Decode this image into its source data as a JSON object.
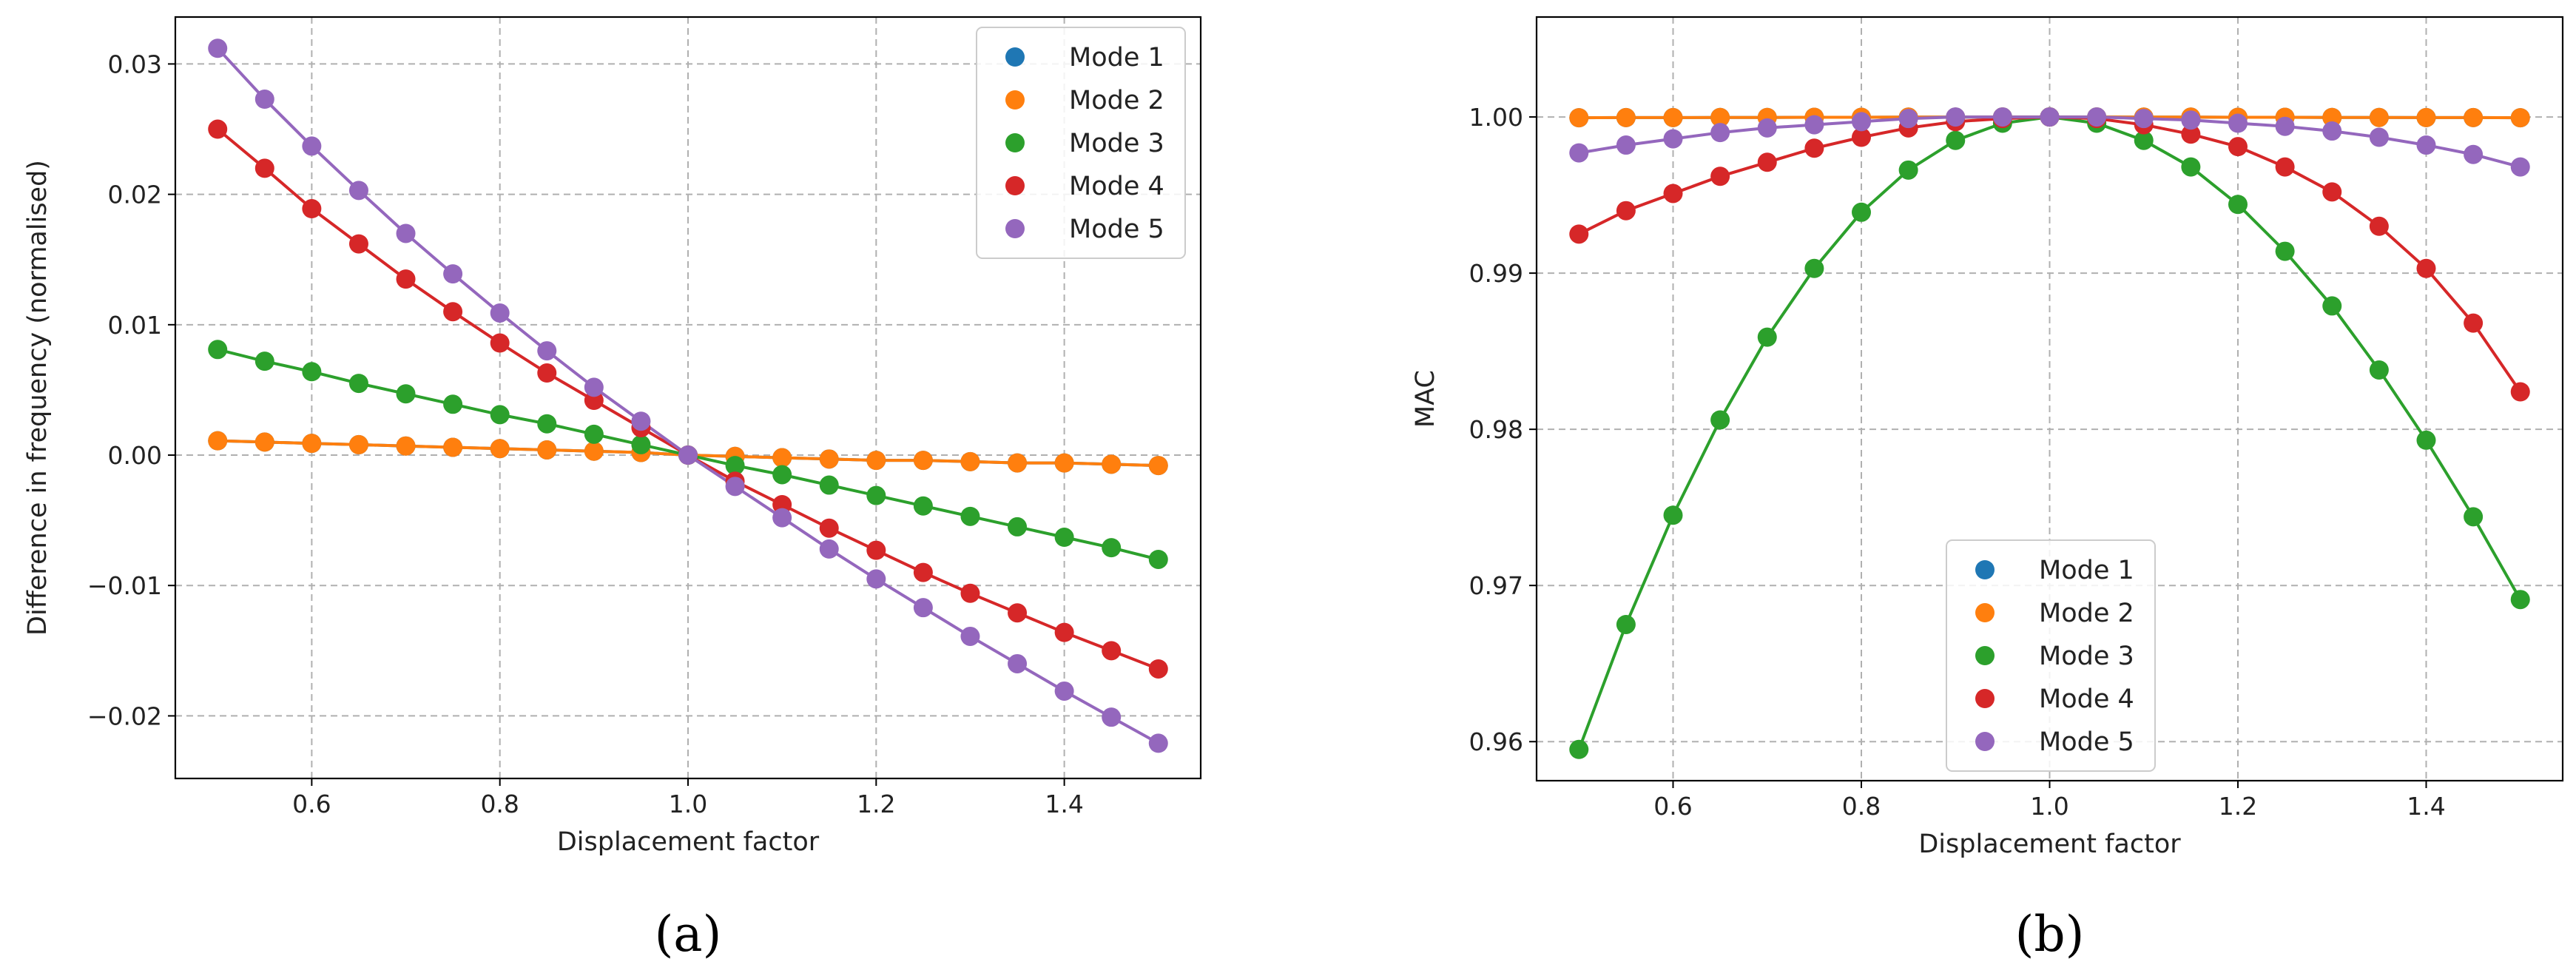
{
  "chart_data": [
    {
      "type": "line",
      "title": "",
      "panel_label": "(a)",
      "xlabel": "Displacement factor",
      "ylabel": "Difference in frequency (normalised)",
      "xlim": [
        0.455,
        1.545
      ],
      "ylim": [
        -0.0248,
        0.0336
      ],
      "xticks": [
        0.6,
        0.8,
        1.0,
        1.2,
        1.4
      ],
      "xtick_labels": [
        "0.6",
        "0.8",
        "1.0",
        "1.2",
        "1.4"
      ],
      "yticks": [
        -0.02,
        -0.01,
        0.0,
        0.01,
        0.02,
        0.03
      ],
      "ytick_labels": [
        "−0.02",
        "−0.01",
        "0.00",
        "0.01",
        "0.02",
        "0.03"
      ],
      "grid": true,
      "legend_position": "top-right",
      "x": [
        0.5,
        0.55,
        0.6,
        0.65,
        0.7,
        0.75,
        0.8,
        0.85,
        0.9,
        0.95,
        1.0,
        1.05,
        1.1,
        1.15,
        1.2,
        1.25,
        1.3,
        1.35,
        1.4,
        1.45,
        1.5
      ],
      "series": [
        {
          "name": "Mode 1",
          "color": "#1f77b4",
          "values": [
            0.0011,
            0.001,
            0.0009,
            0.0008,
            0.0007,
            0.0006,
            0.0005,
            0.0004,
            0.0003,
            0.0002,
            0.0,
            -0.0001,
            -0.0002,
            -0.0003,
            -0.0004,
            -0.0004,
            -0.0005,
            -0.0006,
            -0.0006,
            -0.0007,
            -0.0008
          ]
        },
        {
          "name": "Mode 2",
          "color": "#ff7f0e",
          "values": [
            0.0011,
            0.001,
            0.0009,
            0.0008,
            0.0007,
            0.0006,
            0.0005,
            0.0004,
            0.0003,
            0.0002,
            0.0,
            -0.0001,
            -0.0002,
            -0.0003,
            -0.0004,
            -0.0004,
            -0.0005,
            -0.0006,
            -0.0006,
            -0.0007,
            -0.0008
          ]
        },
        {
          "name": "Mode 3",
          "color": "#2ca02c",
          "values": [
            0.0081,
            0.0072,
            0.0064,
            0.0055,
            0.0047,
            0.0039,
            0.0031,
            0.0024,
            0.0016,
            0.0008,
            0.0,
            -0.0008,
            -0.0015,
            -0.0023,
            -0.0031,
            -0.0039,
            -0.0047,
            -0.0055,
            -0.0063,
            -0.0071,
            -0.008
          ]
        },
        {
          "name": "Mode 4",
          "color": "#d62728",
          "values": [
            0.025,
            0.022,
            0.0189,
            0.0162,
            0.0135,
            0.011,
            0.0086,
            0.0063,
            0.0042,
            0.0021,
            0.0,
            -0.002,
            -0.0038,
            -0.0056,
            -0.0073,
            -0.009,
            -0.0106,
            -0.0121,
            -0.0136,
            -0.015,
            -0.0164
          ]
        },
        {
          "name": "Mode 5",
          "color": "#9467bd",
          "values": [
            0.0312,
            0.0273,
            0.0237,
            0.0203,
            0.017,
            0.0139,
            0.0109,
            0.008,
            0.0052,
            0.0026,
            0.0,
            -0.0024,
            -0.0048,
            -0.0072,
            -0.0095,
            -0.0117,
            -0.0139,
            -0.016,
            -0.0181,
            -0.0201,
            -0.0221
          ]
        }
      ]
    },
    {
      "type": "line",
      "title": "",
      "panel_label": "(b)",
      "xlabel": "Displacement factor",
      "ylabel": "MAC",
      "xlim": [
        0.455,
        1.545
      ],
      "ylim": [
        0.9575,
        1.0064
      ],
      "xticks": [
        0.6,
        0.8,
        1.0,
        1.2,
        1.4
      ],
      "xtick_labels": [
        "0.6",
        "0.8",
        "1.0",
        "1.2",
        "1.4"
      ],
      "yticks": [
        0.96,
        0.97,
        0.98,
        0.99,
        1.0
      ],
      "ytick_labels": [
        "0.96",
        "0.97",
        "0.98",
        "0.99",
        "1.00"
      ],
      "grid": true,
      "legend_position": "bottom-center",
      "x": [
        0.5,
        0.55,
        0.6,
        0.65,
        0.7,
        0.75,
        0.8,
        0.85,
        0.9,
        0.95,
        1.0,
        1.05,
        1.1,
        1.15,
        1.2,
        1.25,
        1.3,
        1.35,
        1.4,
        1.45,
        1.5
      ],
      "series": [
        {
          "name": "Mode 1",
          "color": "#1f77b4",
          "values": [
            0.99995,
            0.99996,
            0.99996,
            0.99997,
            0.99997,
            0.99998,
            0.99998,
            0.99999,
            0.99999,
            1.0,
            1.0,
            1.0,
            0.99999,
            0.99999,
            0.99998,
            0.99998,
            0.99997,
            0.99997,
            0.99996,
            0.99996,
            0.99995
          ]
        },
        {
          "name": "Mode 2",
          "color": "#ff7f0e",
          "values": [
            0.99995,
            0.99996,
            0.99996,
            0.99997,
            0.99997,
            0.99998,
            0.99998,
            0.99999,
            0.99999,
            1.0,
            1.0,
            1.0,
            0.99999,
            0.99999,
            0.99998,
            0.99998,
            0.99997,
            0.99997,
            0.99996,
            0.99996,
            0.99995
          ]
        },
        {
          "name": "Mode 3",
          "color": "#2ca02c",
          "values": [
            0.9595,
            0.9675,
            0.9745,
            0.9806,
            0.9859,
            0.9903,
            0.9939,
            0.9966,
            0.9985,
            0.9996,
            1.0,
            0.9996,
            0.9985,
            0.9968,
            0.9944,
            0.9914,
            0.9879,
            0.9838,
            0.9793,
            0.9744,
            0.9691
          ]
        },
        {
          "name": "Mode 4",
          "color": "#d62728",
          "values": [
            0.9925,
            0.994,
            0.9951,
            0.9962,
            0.9971,
            0.998,
            0.9987,
            0.9993,
            0.9997,
            0.9999,
            1.0,
            0.9999,
            0.9995,
            0.9989,
            0.9981,
            0.9968,
            0.9952,
            0.993,
            0.9903,
            0.9868,
            0.9824
          ]
        },
        {
          "name": "Mode 5",
          "color": "#9467bd",
          "values": [
            0.9977,
            0.9982,
            0.9986,
            0.999,
            0.9993,
            0.9995,
            0.9997,
            0.9999,
            1.0,
            1.0,
            1.0,
            1.0,
            0.9999,
            0.9998,
            0.9996,
            0.9994,
            0.9991,
            0.9987,
            0.9982,
            0.9976,
            0.9968
          ]
        }
      ]
    }
  ]
}
